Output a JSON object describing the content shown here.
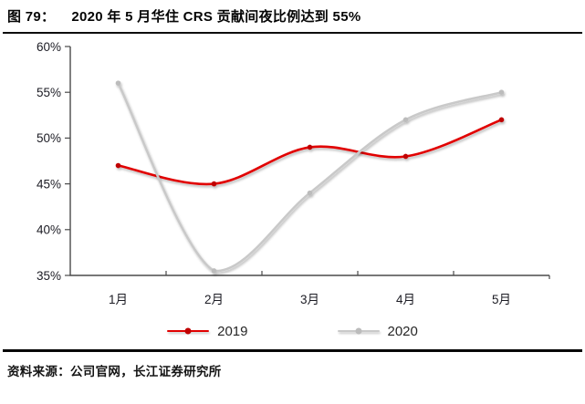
{
  "figure": {
    "label": "图 79：",
    "title": "2020 年 5 月华住 CRS 贡献间夜比例达到 55%"
  },
  "chart_data": {
    "type": "line",
    "title": "图 79：2020 年 5 月华住 CRS 贡献间夜比例达到 55%",
    "categories": [
      "1月",
      "2月",
      "3月",
      "4月",
      "5月"
    ],
    "series": [
      {
        "name": "2019",
        "color": "#e10000",
        "marker_color": "#c00000",
        "values": [
          47,
          45,
          49,
          48,
          52
        ]
      },
      {
        "name": "2020",
        "color": "#c9c9c9",
        "marker_color": "#bcbcbc",
        "values": [
          56,
          35.5,
          44,
          52,
          55
        ]
      }
    ],
    "xlabel": "",
    "ylabel": "",
    "ylim": [
      35,
      60
    ],
    "ytick_step": 5,
    "ytick_labels": [
      "35%",
      "40%",
      "45%",
      "50%",
      "55%",
      "60%"
    ],
    "grid": false,
    "smooth": true,
    "legend_position": "bottom",
    "draw_order_note": "2020 series drawn on top of 2019"
  },
  "source": {
    "label": "资料来源：",
    "text": "公司官网，长江证券研究所"
  },
  "style": {
    "axis_color": "#4a4a4a",
    "label_color": "#1c1c24",
    "rule_color": "#0d0d0d"
  }
}
